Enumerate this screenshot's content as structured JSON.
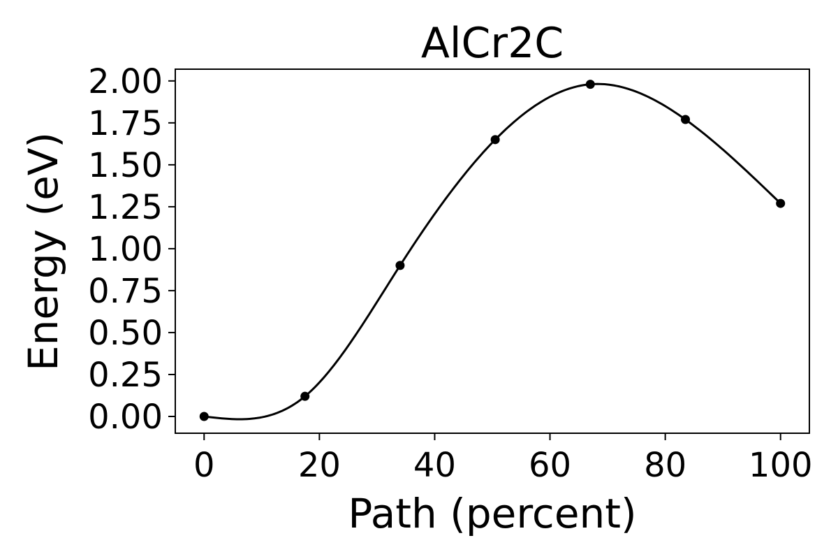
{
  "chart_data": {
    "type": "line",
    "title": "AlCr2C",
    "xlabel": "Path (percent)",
    "ylabel": "Energy (eV)",
    "xlim": [
      -5,
      105
    ],
    "ylim": [
      -0.1,
      2.07
    ],
    "xticks": [
      0,
      20,
      40,
      60,
      80,
      100
    ],
    "yticks": [
      0.0,
      0.25,
      0.5,
      0.75,
      1.0,
      1.25,
      1.5,
      1.75,
      2.0
    ],
    "xtick_labels": [
      "0",
      "20",
      "40",
      "60",
      "80",
      "100"
    ],
    "ytick_labels": [
      "0.00",
      "0.25",
      "0.50",
      "0.75",
      "1.00",
      "1.25",
      "1.50",
      "1.75",
      "2.00"
    ],
    "grid": false,
    "series": [
      {
        "x": [
          0,
          17.5,
          34,
          50.5,
          67,
          83.5,
          100
        ],
        "y": [
          0.0,
          0.12,
          0.9,
          1.65,
          1.98,
          1.77,
          1.27
        ]
      }
    ],
    "color": "#000000"
  }
}
